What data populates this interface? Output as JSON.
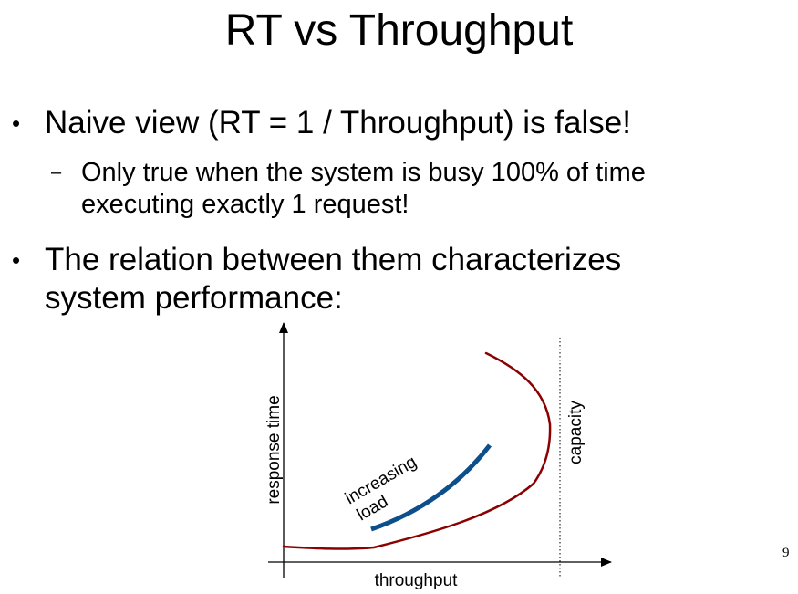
{
  "title": "RT vs Throughput",
  "bullets": [
    {
      "lines": [
        "Naive view (RT = 1 / Throughput) is false!"
      ],
      "sub": [
        {
          "lines": [
            "Only true when the system is busy 100% of time",
            "executing exactly 1 request!"
          ]
        }
      ]
    },
    {
      "lines": [
        "The relation between them characterizes",
        "system performance:"
      ]
    }
  ],
  "markers": {
    "bullet": "•",
    "sub": "–"
  },
  "diagram": {
    "x_label": "throughput",
    "y_label": "response time",
    "capacity_label": "capacity",
    "load_label_line1": "increasing",
    "load_label_line2": "load",
    "colors": {
      "curve": "#8b0000",
      "load_arrow": "#0d4f8b",
      "axes": "#000000"
    }
  },
  "page_number": "9"
}
